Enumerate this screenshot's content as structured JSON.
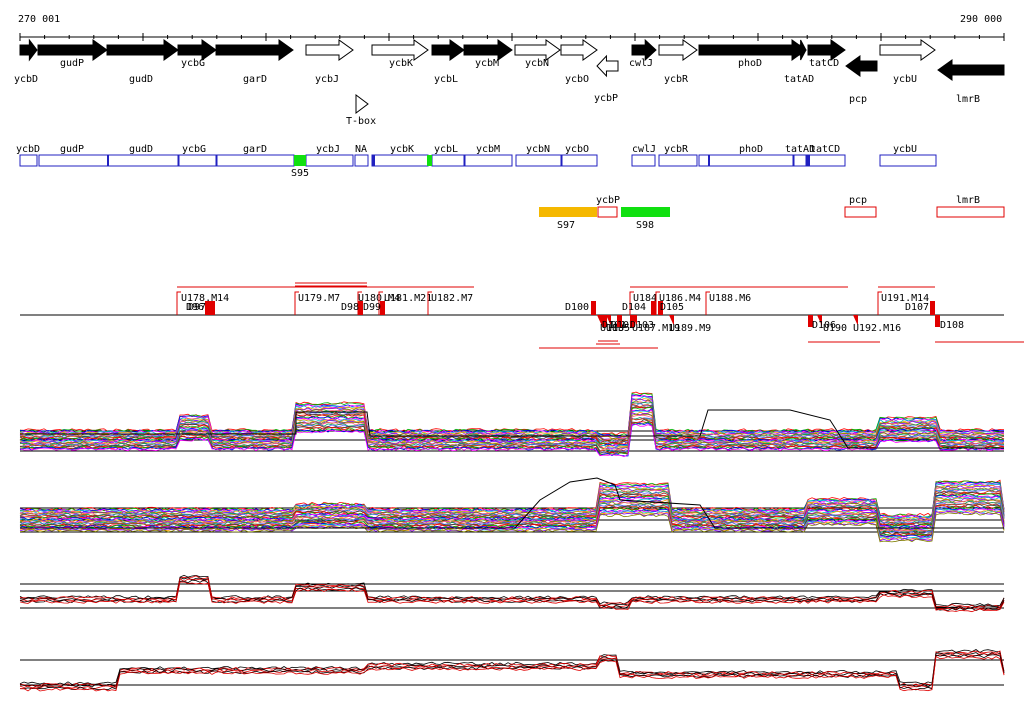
{
  "coordinates": {
    "start_label": "270 001",
    "end_label": "290 000"
  },
  "genes": [
    {
      "name": "ycbD",
      "strand": "+",
      "fill": "black"
    },
    {
      "name": "gudP",
      "strand": "+",
      "fill": "black"
    },
    {
      "name": "gudD",
      "strand": "+",
      "fill": "black"
    },
    {
      "name": "ycbG",
      "strand": "+",
      "fill": "black"
    },
    {
      "name": "garD",
      "strand": "+",
      "fill": "black"
    },
    {
      "name": "ycbJ",
      "strand": "+",
      "fill": "white"
    },
    {
      "name": "ycbK",
      "strand": "+",
      "fill": "white"
    },
    {
      "name": "ycbL",
      "strand": "+",
      "fill": "black"
    },
    {
      "name": "ycbM",
      "strand": "+",
      "fill": "black"
    },
    {
      "name": "ycbN",
      "strand": "+",
      "fill": "white"
    },
    {
      "name": "ycbO",
      "strand": "+",
      "fill": "white"
    },
    {
      "name": "ycbP",
      "strand": "-",
      "fill": "white"
    },
    {
      "name": "cwlJ",
      "strand": "+",
      "fill": "black"
    },
    {
      "name": "ycbR",
      "strand": "+",
      "fill": "white"
    },
    {
      "name": "phoD",
      "strand": "+",
      "fill": "black"
    },
    {
      "name": "tatAD",
      "strand": "+",
      "fill": "black"
    },
    {
      "name": "tatCD",
      "strand": "+",
      "fill": "black"
    },
    {
      "name": "pcp",
      "strand": "-",
      "fill": "black"
    },
    {
      "name": "ycbU",
      "strand": "+",
      "fill": "white"
    },
    {
      "name": "lmrB",
      "strand": "-",
      "fill": "black"
    }
  ],
  "riboswitch": "T-box",
  "upstream_labels": [
    "ycbD",
    "gudP",
    "gudD",
    "ycbG",
    "garD",
    "ycbJ",
    "NA",
    "ycbK",
    "ycbL",
    "ycbM",
    "ycbN",
    "ycbO",
    "cwlJ",
    "ycbR",
    "phoD",
    "tatAD",
    "tatCD",
    "ycbU"
  ],
  "upstream_segments": [
    "S95"
  ],
  "downstream_labels": [
    "ycbP",
    "pcp",
    "lmrB"
  ],
  "downstream_segments": [
    "S97",
    "S98"
  ],
  "upshift_labels": [
    "U178.M14",
    "U179.M7",
    "U180.M4",
    "U181.M21",
    "U182.M7",
    "U183",
    "U184",
    "U185",
    "U186.M4",
    "U187.M19",
    "U188.M6",
    "U189.M9",
    "U190",
    "U191.M14",
    "U192.M16"
  ],
  "downshift_labels": [
    "D96",
    "D97",
    "D98",
    "D99",
    "D100",
    "D101",
    "D102",
    "D103",
    "D104",
    "D105",
    "D106",
    "D107",
    "D108"
  ],
  "tracks": {
    "colors": [
      "#ff0000",
      "#00b000",
      "#0000ff",
      "#ff00ff",
      "#00c8c8",
      "#ffa000",
      "#8000ff",
      "#808000",
      "#ff6080",
      "#00a060",
      "#6060ff",
      "#c04000",
      "#404040"
    ]
  }
}
